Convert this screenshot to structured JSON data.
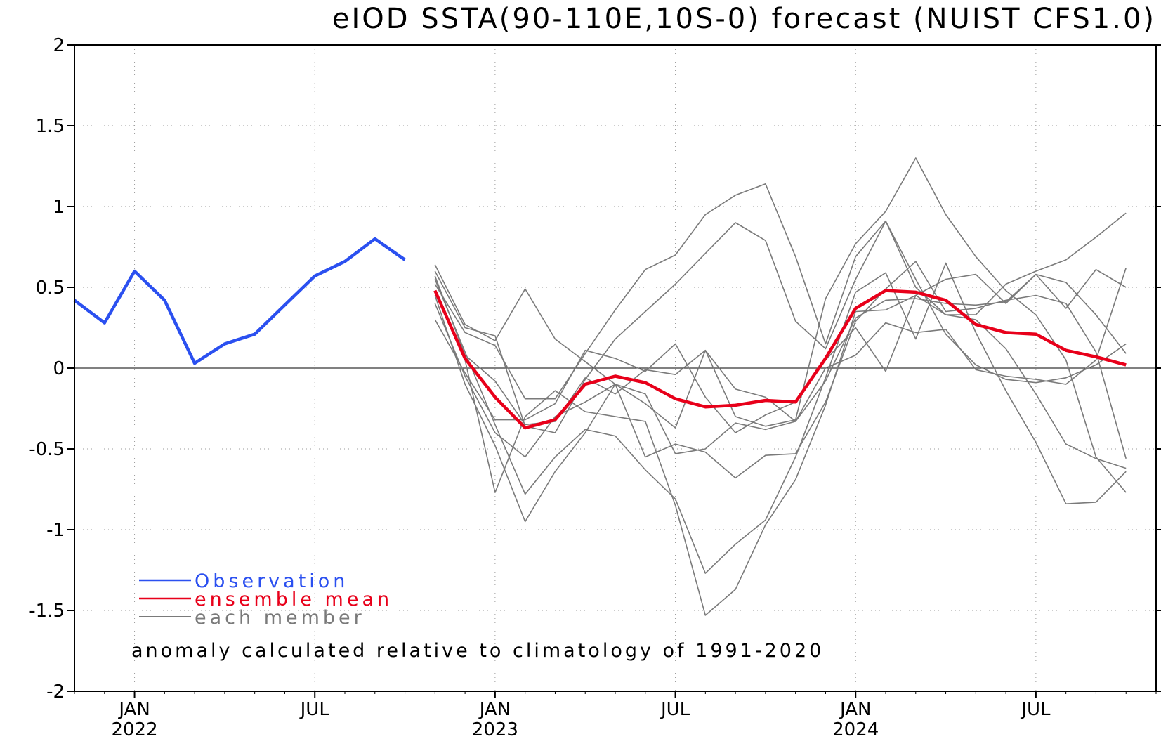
{
  "chart_data": {
    "type": "line",
    "title": "eIOD SSTA(90-110E,10S-0) forecast (NUIST CFS1.0)",
    "ylim": [
      -2,
      2
    ],
    "y_ticks": [
      {
        "value": 2,
        "label": "2"
      },
      {
        "value": 1.5,
        "label": "1.5"
      },
      {
        "value": 1,
        "label": "1"
      },
      {
        "value": 0.5,
        "label": "0.5"
      },
      {
        "value": 0,
        "label": "0"
      },
      {
        "value": -0.5,
        "label": "-0.5"
      },
      {
        "value": -1,
        "label": "-1"
      },
      {
        "value": -1.5,
        "label": "-1.5"
      },
      {
        "value": -2,
        "label": "-2"
      }
    ],
    "x_range": [
      "2021-11",
      "2024-11"
    ],
    "x_ticks": [
      {
        "date": "2022-01",
        "month": "JAN",
        "year": "2022"
      },
      {
        "date": "2022-07",
        "month": "JUL",
        "year": ""
      },
      {
        "date": "2023-01",
        "month": "JAN",
        "year": "2023"
      },
      {
        "date": "2023-07",
        "month": "JUL",
        "year": ""
      },
      {
        "date": "2024-01",
        "month": "JAN",
        "year": "2024"
      },
      {
        "date": "2024-07",
        "month": "JUL",
        "year": ""
      }
    ],
    "grid": "dotted",
    "zero_line": true,
    "legend": [
      {
        "label": "Observation",
        "color": "#2b50f0"
      },
      {
        "label": "ensemble mean",
        "color": "#e8001a"
      },
      {
        "label": "each member",
        "color": "#7a7a7a"
      }
    ],
    "annotation": "anomaly calculated relative to climatology of 1991-2020",
    "observation": {
      "color": "#2b50f0",
      "x": [
        "2021-11",
        "2021-12",
        "2022-01",
        "2022-02",
        "2022-03",
        "2022-04",
        "2022-05",
        "2022-06",
        "2022-07",
        "2022-08",
        "2022-09",
        "2022-10"
      ],
      "values": [
        0.42,
        0.28,
        0.6,
        0.42,
        0.03,
        0.15,
        0.21,
        0.39,
        0.57,
        0.66,
        0.8,
        0.67
      ]
    },
    "forecast_x": [
      "2022-11",
      "2022-12",
      "2023-01",
      "2023-02",
      "2023-03",
      "2023-04",
      "2023-05",
      "2023-06",
      "2023-07",
      "2023-08",
      "2023-09",
      "2023-10",
      "2023-11",
      "2023-12",
      "2024-01",
      "2024-02",
      "2024-03",
      "2024-04",
      "2024-05",
      "2024-06",
      "2024-07",
      "2024-08",
      "2024-09",
      "2024-10"
    ],
    "ensemble_mean": {
      "color": "#e8001a",
      "values": [
        0.48,
        0.06,
        -0.18,
        -0.37,
        -0.32,
        -0.1,
        -0.05,
        -0.09,
        -0.19,
        -0.24,
        -0.23,
        -0.2,
        -0.21,
        0.06,
        0.37,
        0.48,
        0.47,
        0.42,
        0.27,
        0.22,
        0.21,
        0.11,
        0.07,
        0.02
      ]
    },
    "members": {
      "color": "#7a7a7a",
      "series": [
        {
          "values": [
            0.6,
            0.25,
            0.2,
            -0.36,
            -0.4,
            -0.07,
            0.18,
            0.35,
            0.52,
            0.71,
            0.9,
            0.79,
            0.29,
            0.12,
            0.55,
            0.91,
            0.55,
            0.21,
            0.02,
            -0.07,
            -0.09,
            -0.06,
            0.02,
            0.15
          ]
        },
        {
          "values": [
            0.64,
            0.27,
            0.17,
            0.49,
            0.18,
            0.04,
            -0.1,
            -0.22,
            -0.37,
            0.11,
            -0.3,
            -0.36,
            -0.32,
            0.43,
            0.77,
            0.97,
            1.3,
            0.95,
            0.69,
            0.48,
            0.33,
            0.05,
            -0.55,
            -0.77
          ]
        },
        {
          "values": [
            0.55,
            0.1,
            -0.35,
            -0.78,
            -0.55,
            -0.38,
            -0.42,
            -0.63,
            -0.81,
            -1.27,
            -1.09,
            -0.94,
            -0.55,
            -0.06,
            0.47,
            0.59,
            0.18,
            0.65,
            0.22,
            -0.14,
            -0.46,
            -0.84,
            -0.83,
            -0.64
          ]
        },
        {
          "values": [
            0.45,
            -0.1,
            -0.48,
            -0.95,
            -0.64,
            -0.4,
            -0.1,
            -0.55,
            -0.47,
            -0.52,
            -0.68,
            -0.54,
            -0.53,
            -0.21,
            0.29,
            0.49,
            0.66,
            0.35,
            0.37,
            0.42,
            0.45,
            0.4,
            0.1,
            -0.56
          ]
        },
        {
          "values": [
            0.3,
            -0.03,
            -0.32,
            -0.32,
            -0.22,
            0.11,
            0.06,
            -0.02,
            0.15,
            -0.18,
            -0.4,
            -0.29,
            -0.21,
            0.05,
            0.25,
            -0.02,
            0.45,
            0.55,
            0.58,
            0.4,
            0.58,
            0.53,
            0.33,
            0.09
          ]
        },
        {
          "values": [
            0.4,
            -0.05,
            -0.4,
            -0.55,
            -0.3,
            -0.21,
            -0.1,
            -0.16,
            -0.53,
            -0.5,
            -0.34,
            -0.38,
            -0.33,
            -0.08,
            0.31,
            0.42,
            0.43,
            0.4,
            0.39,
            0.41,
            0.58,
            0.37,
            0.61,
            0.5
          ]
        },
        {
          "values": [
            0.57,
            0.08,
            -0.08,
            -0.35,
            -0.33,
            -0.06,
            -0.16,
            -0.01,
            -0.04,
            0.11,
            -0.13,
            -0.18,
            -0.33,
            0.0,
            0.08,
            0.28,
            0.22,
            0.24,
            -0.01,
            -0.05,
            -0.07,
            -0.1,
            0.05,
            0.62
          ]
        },
        {
          "values": [
            0.48,
            0.05,
            -0.77,
            -0.3,
            -0.14,
            -0.27,
            -0.3,
            -0.33,
            -0.85,
            -1.53,
            -1.37,
            -0.97,
            -0.69,
            -0.23,
            0.35,
            0.36,
            0.45,
            0.33,
            0.3,
            0.12,
            -0.16,
            -0.47,
            -0.56,
            -0.62
          ]
        },
        {
          "values": [
            0.52,
            0.22,
            0.14,
            -0.19,
            -0.19,
            0.09,
            0.36,
            0.61,
            0.7,
            0.95,
            1.07,
            1.14,
            0.69,
            0.15,
            0.69,
            0.91,
            0.5,
            0.33,
            0.33,
            0.52,
            0.6,
            0.67,
            0.81,
            0.96
          ]
        }
      ]
    }
  }
}
